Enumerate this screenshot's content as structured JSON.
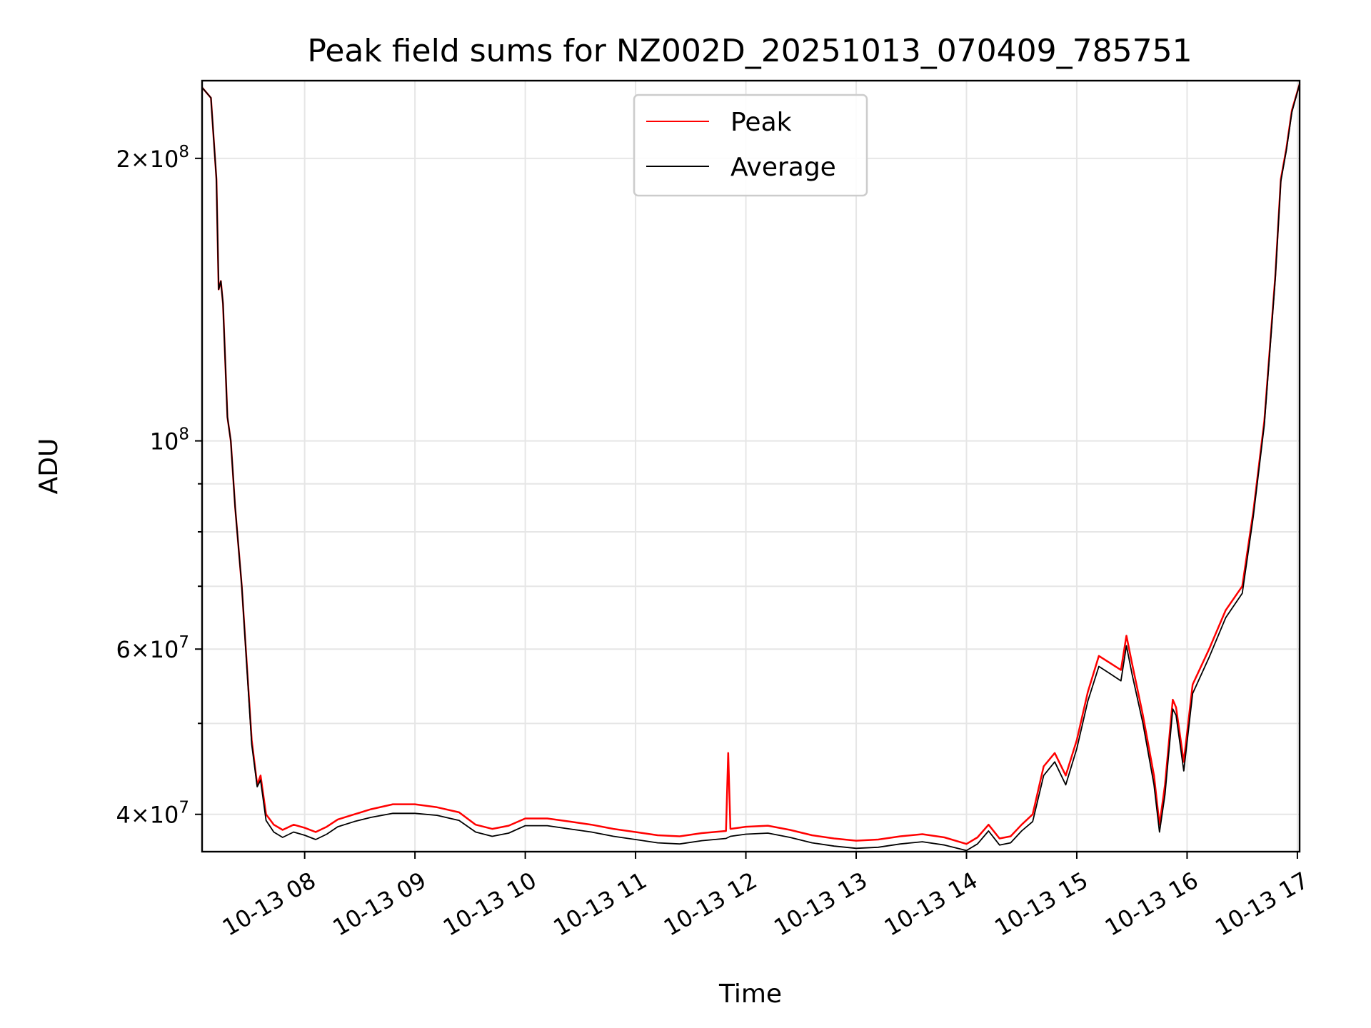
{
  "chart_data": {
    "type": "line",
    "title": "Peak field sums for NZ002D_20251013_070409_785751",
    "xlabel": "Time",
    "ylabel": "ADU",
    "y_scale": "log",
    "xlim_hours": [
      7.07,
      17.02
    ],
    "ylim": [
      36500000,
      242000000
    ],
    "x_tick_hours": [
      8,
      9,
      10,
      11,
      12,
      13,
      14,
      15,
      16,
      17
    ],
    "x_tick_labels": [
      "10-13 08",
      "10-13 09",
      "10-13 10",
      "10-13 11",
      "10-13 12",
      "10-13 13",
      "10-13 14",
      "10-13 15",
      "10-13 16",
      "10-13 17"
    ],
    "y_major_ticks": [
      {
        "value": 40000000,
        "mantissa": "4",
        "exponent": "7"
      },
      {
        "value": 60000000,
        "mantissa": "6",
        "exponent": "7"
      },
      {
        "value": 100000000,
        "mantissa": "",
        "exponent": "8"
      },
      {
        "value": 200000000,
        "mantissa": "2",
        "exponent": "8"
      }
    ],
    "y_minor_ticks": [
      50000000,
      70000000,
      80000000,
      90000000
    ],
    "grid": true,
    "legend_position": "top-center",
    "series": [
      {
        "name": "Peak",
        "color": "#ff0000",
        "points": [
          [
            7.07,
            238000000
          ],
          [
            7.15,
            232000000
          ],
          [
            7.2,
            190000000
          ],
          [
            7.22,
            145000000
          ],
          [
            7.24,
            148000000
          ],
          [
            7.26,
            140000000
          ],
          [
            7.3,
            106000000
          ],
          [
            7.33,
            100000000
          ],
          [
            7.37,
            85000000
          ],
          [
            7.43,
            70000000
          ],
          [
            7.52,
            48000000
          ],
          [
            7.57,
            43000000
          ],
          [
            7.6,
            44000000
          ],
          [
            7.65,
            40000000
          ],
          [
            7.72,
            39000000
          ],
          [
            7.8,
            38500000
          ],
          [
            7.9,
            39000000
          ],
          [
            8.0,
            38700000
          ],
          [
            8.1,
            38300000
          ],
          [
            8.2,
            38800000
          ],
          [
            8.3,
            39500000
          ],
          [
            8.45,
            40000000
          ],
          [
            8.6,
            40500000
          ],
          [
            8.8,
            41000000
          ],
          [
            9.0,
            41000000
          ],
          [
            9.2,
            40700000
          ],
          [
            9.4,
            40200000
          ],
          [
            9.55,
            39000000
          ],
          [
            9.7,
            38600000
          ],
          [
            9.85,
            38900000
          ],
          [
            10.0,
            39600000
          ],
          [
            10.2,
            39600000
          ],
          [
            10.4,
            39300000
          ],
          [
            10.6,
            39000000
          ],
          [
            10.8,
            38600000
          ],
          [
            11.0,
            38300000
          ],
          [
            11.2,
            38000000
          ],
          [
            11.4,
            37900000
          ],
          [
            11.6,
            38200000
          ],
          [
            11.82,
            38400000
          ],
          [
            11.84,
            46500000
          ],
          [
            11.86,
            38600000
          ],
          [
            12.0,
            38800000
          ],
          [
            12.2,
            38900000
          ],
          [
            12.4,
            38500000
          ],
          [
            12.6,
            38000000
          ],
          [
            12.8,
            37700000
          ],
          [
            13.0,
            37500000
          ],
          [
            13.2,
            37600000
          ],
          [
            13.4,
            37900000
          ],
          [
            13.6,
            38100000
          ],
          [
            13.8,
            37800000
          ],
          [
            14.0,
            37200000
          ],
          [
            14.1,
            37800000
          ],
          [
            14.2,
            39000000
          ],
          [
            14.3,
            37700000
          ],
          [
            14.4,
            37900000
          ],
          [
            14.5,
            39000000
          ],
          [
            14.6,
            40000000
          ],
          [
            14.7,
            45000000
          ],
          [
            14.8,
            46500000
          ],
          [
            14.9,
            44000000
          ],
          [
            15.0,
            48000000
          ],
          [
            15.1,
            54000000
          ],
          [
            15.2,
            59000000
          ],
          [
            15.3,
            58000000
          ],
          [
            15.4,
            57000000
          ],
          [
            15.45,
            62000000
          ],
          [
            15.5,
            58000000
          ],
          [
            15.6,
            51000000
          ],
          [
            15.7,
            44000000
          ],
          [
            15.75,
            39000000
          ],
          [
            15.8,
            43000000
          ],
          [
            15.87,
            53000000
          ],
          [
            15.9,
            52000000
          ],
          [
            15.97,
            45500000
          ],
          [
            16.05,
            55000000
          ],
          [
            16.2,
            60000000
          ],
          [
            16.35,
            66000000
          ],
          [
            16.5,
            70000000
          ],
          [
            16.6,
            84000000
          ],
          [
            16.7,
            105000000
          ],
          [
            16.8,
            150000000
          ],
          [
            16.85,
            190000000
          ],
          [
            16.9,
            205000000
          ],
          [
            16.95,
            225000000
          ],
          [
            17.02,
            240000000
          ]
        ]
      },
      {
        "name": "Average",
        "color": "#000000",
        "points": [
          [
            7.07,
            238000000
          ],
          [
            7.15,
            232000000
          ],
          [
            7.2,
            190000000
          ],
          [
            7.22,
            145000000
          ],
          [
            7.24,
            148000000
          ],
          [
            7.26,
            140000000
          ],
          [
            7.3,
            106000000
          ],
          [
            7.33,
            100000000
          ],
          [
            7.37,
            85000000
          ],
          [
            7.43,
            70000000
          ],
          [
            7.52,
            47500000
          ],
          [
            7.57,
            42800000
          ],
          [
            7.6,
            43500000
          ],
          [
            7.65,
            39400000
          ],
          [
            7.72,
            38300000
          ],
          [
            7.8,
            37800000
          ],
          [
            7.9,
            38300000
          ],
          [
            8.0,
            38000000
          ],
          [
            8.1,
            37600000
          ],
          [
            8.2,
            38100000
          ],
          [
            8.3,
            38800000
          ],
          [
            8.45,
            39300000
          ],
          [
            8.6,
            39700000
          ],
          [
            8.8,
            40100000
          ],
          [
            9.0,
            40100000
          ],
          [
            9.2,
            39900000
          ],
          [
            9.4,
            39400000
          ],
          [
            9.55,
            38300000
          ],
          [
            9.7,
            37900000
          ],
          [
            9.85,
            38200000
          ],
          [
            10.0,
            38900000
          ],
          [
            10.2,
            38900000
          ],
          [
            10.4,
            38600000
          ],
          [
            10.6,
            38300000
          ],
          [
            10.8,
            37900000
          ],
          [
            11.0,
            37600000
          ],
          [
            11.2,
            37300000
          ],
          [
            11.4,
            37200000
          ],
          [
            11.6,
            37500000
          ],
          [
            11.82,
            37700000
          ],
          [
            11.84,
            37800000
          ],
          [
            11.86,
            37900000
          ],
          [
            12.0,
            38100000
          ],
          [
            12.2,
            38200000
          ],
          [
            12.4,
            37800000
          ],
          [
            12.6,
            37300000
          ],
          [
            12.8,
            37000000
          ],
          [
            13.0,
            36800000
          ],
          [
            13.2,
            36900000
          ],
          [
            13.4,
            37200000
          ],
          [
            13.6,
            37400000
          ],
          [
            13.8,
            37100000
          ],
          [
            14.0,
            36600000
          ],
          [
            14.1,
            37200000
          ],
          [
            14.2,
            38400000
          ],
          [
            14.3,
            37100000
          ],
          [
            14.4,
            37300000
          ],
          [
            14.5,
            38400000
          ],
          [
            14.6,
            39300000
          ],
          [
            14.7,
            44000000
          ],
          [
            14.8,
            45500000
          ],
          [
            14.9,
            43000000
          ],
          [
            15.0,
            47000000
          ],
          [
            15.1,
            52800000
          ],
          [
            15.2,
            57500000
          ],
          [
            15.3,
            56500000
          ],
          [
            15.4,
            55500000
          ],
          [
            15.45,
            60500000
          ],
          [
            15.5,
            56500000
          ],
          [
            15.6,
            50000000
          ],
          [
            15.7,
            43000000
          ],
          [
            15.75,
            38300000
          ],
          [
            15.8,
            42000000
          ],
          [
            15.87,
            51800000
          ],
          [
            15.9,
            51000000
          ],
          [
            15.97,
            44500000
          ],
          [
            16.05,
            53800000
          ],
          [
            16.2,
            58800000
          ],
          [
            16.35,
            64800000
          ],
          [
            16.5,
            68800000
          ],
          [
            16.6,
            83000000
          ],
          [
            16.7,
            104000000
          ],
          [
            16.8,
            149000000
          ],
          [
            16.85,
            189000000
          ],
          [
            16.9,
            204000000
          ],
          [
            16.95,
            224000000
          ],
          [
            17.02,
            240000000
          ]
        ]
      }
    ]
  }
}
